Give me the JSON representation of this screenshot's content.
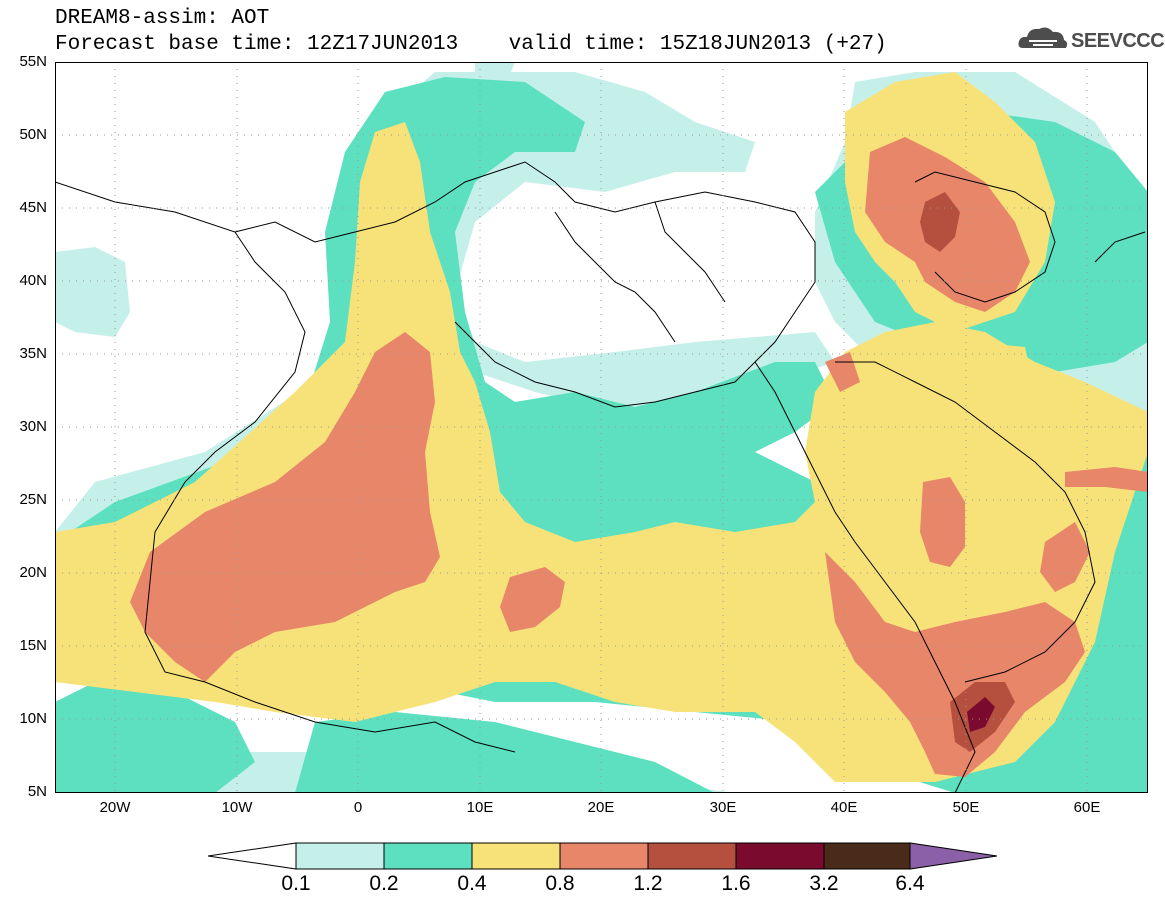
{
  "header": {
    "title_line1": "DREAM8-assim: AOT",
    "title_line2": "Forecast base time: 12Z17JUN2013    valid time: 15Z18JUN2013 (+27)",
    "logo_text": "SEEVCCC"
  },
  "map": {
    "lat_labels": [
      "55N",
      "50N",
      "45N",
      "40N",
      "35N",
      "30N",
      "25N",
      "20N",
      "15N",
      "10N",
      "5N"
    ],
    "lon_labels": [
      "20W",
      "10W",
      "0",
      "10E",
      "20E",
      "30E",
      "40E",
      "50E",
      "60E"
    ],
    "extent": {
      "lon_min": -25,
      "lon_max": 65,
      "lat_min": 5,
      "lat_max": 55
    }
  },
  "colorbar": {
    "labels": [
      "0.1",
      "0.2",
      "0.4",
      "0.8",
      "1.2",
      "1.6",
      "3.2",
      "6.4"
    ],
    "colors": [
      "#ffffff",
      "#c5f0ea",
      "#5ce0bf",
      "#f7e27a",
      "#e8866a",
      "#b5503f",
      "#7a0a2e",
      "#4a2a18",
      "#8c60a8"
    ]
  }
}
